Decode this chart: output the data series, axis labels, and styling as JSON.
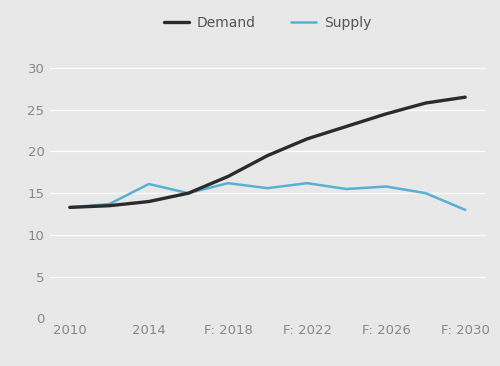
{
  "x_values": [
    2010,
    2012,
    2014,
    2016,
    2018,
    2020,
    2022,
    2024,
    2026,
    2028,
    2030
  ],
  "demand_values": [
    13.3,
    13.5,
    14.0,
    15.0,
    17.0,
    19.5,
    21.5,
    23.0,
    24.5,
    25.8,
    26.5
  ],
  "supply_values": [
    13.3,
    13.7,
    16.1,
    15.0,
    16.2,
    15.6,
    16.2,
    15.5,
    15.8,
    15.0,
    13.0
  ],
  "demand_color": "#2b2b2b",
  "supply_color": "#5aafd4",
  "demand_label": "Demand",
  "supply_label": "Supply",
  "demand_linewidth": 2.4,
  "supply_linewidth": 1.8,
  "background_color": "#e8e8e8",
  "ylim": [
    0,
    32
  ],
  "yticks": [
    0,
    5,
    10,
    15,
    20,
    25,
    30
  ],
  "xlim": [
    2009,
    2031
  ],
  "xtick_positions": [
    2010,
    2014,
    2018,
    2022,
    2026,
    2030
  ],
  "xtick_labels": [
    "2010",
    "2014",
    "F: 2018",
    "F: 2022",
    "F: 2026",
    "F: 2030"
  ],
  "grid_color": "#ffffff",
  "tick_fontsize": 9.5,
  "tick_color": "#888888",
  "legend_fontsize": 10
}
